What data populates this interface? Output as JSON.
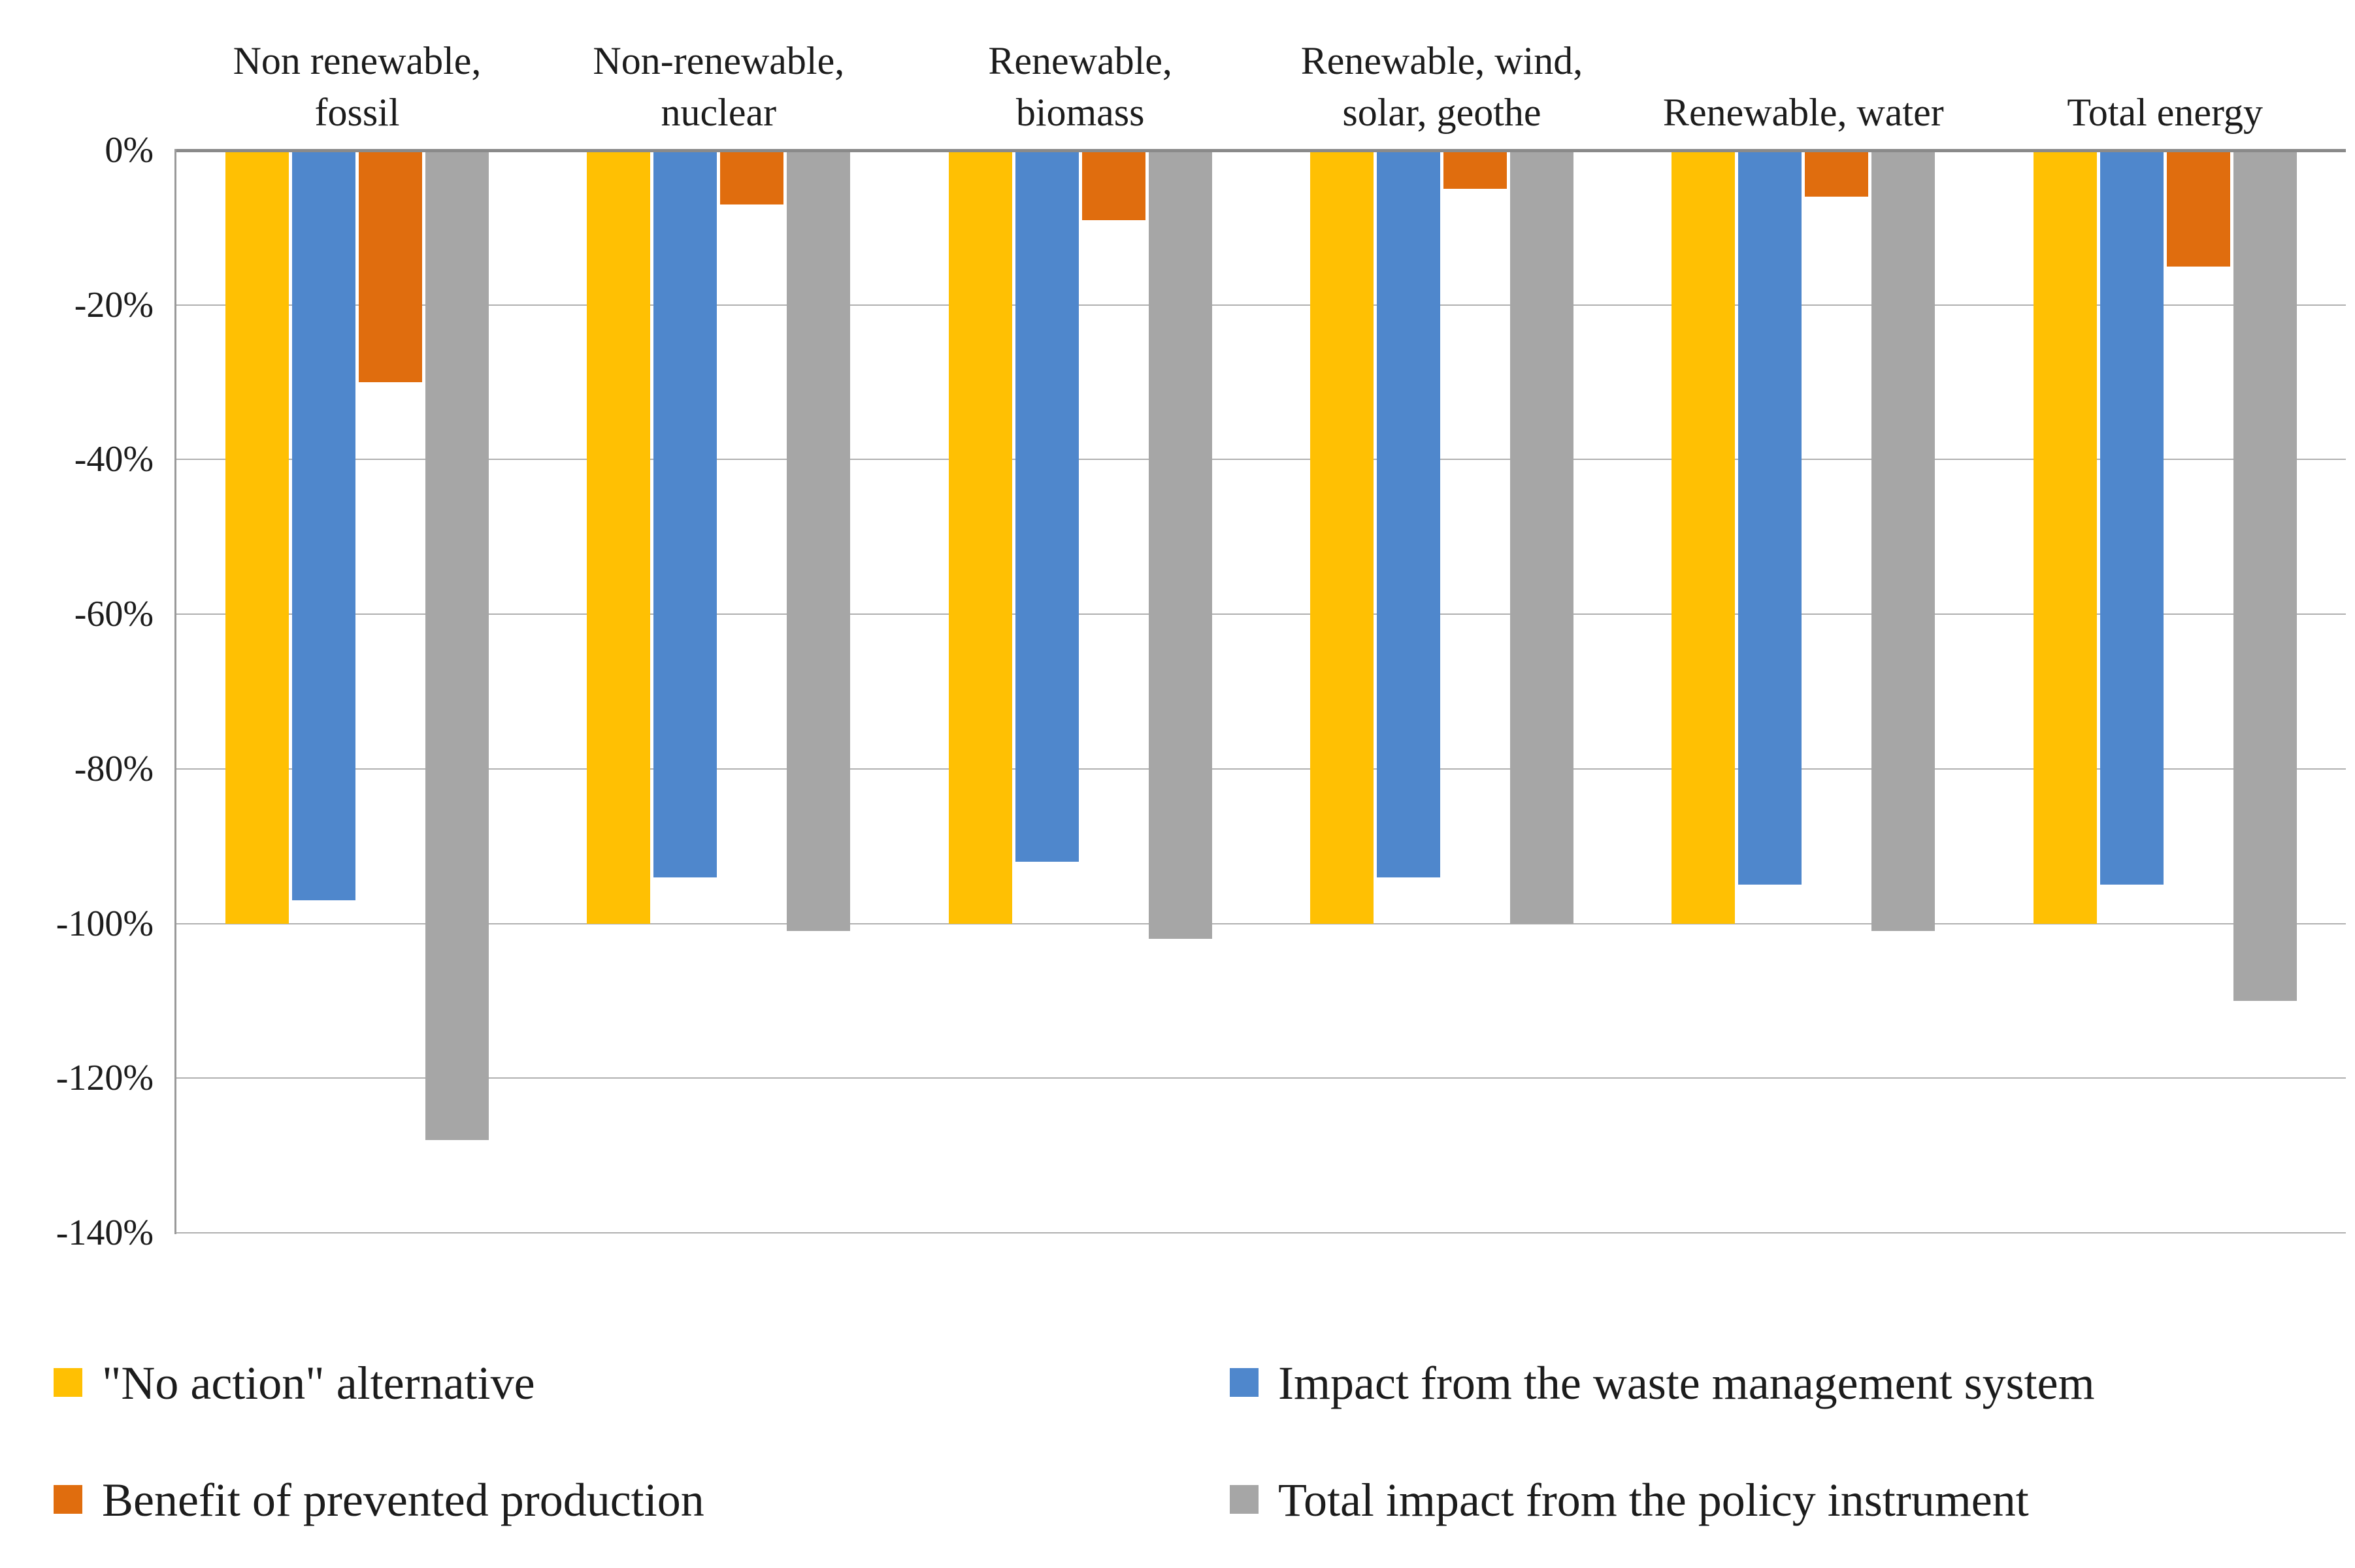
{
  "chart_data": {
    "type": "bar",
    "title": "",
    "xlabel": "",
    "ylabel": "",
    "categories": [
      [
        "Non renewable,",
        "fossil"
      ],
      [
        "Non-renewable,",
        "nuclear"
      ],
      [
        "Renewable,",
        "biomass"
      ],
      [
        "Renewable, wind,",
        "solar, geothe"
      ],
      [
        "Renewable, water"
      ],
      [
        "Total energy"
      ]
    ],
    "series": [
      {
        "name": "\"No action\" alternative",
        "color": "#FFC003",
        "values": [
          -100,
          -100,
          -100,
          -100,
          -100,
          -100
        ]
      },
      {
        "name": "Impact from the waste management system",
        "color": "#4F87CC",
        "values": [
          -97,
          -94,
          -92,
          -94,
          -95,
          -95
        ]
      },
      {
        "name": "Benefit of prevented production",
        "color": "#E06D0E",
        "values": [
          -30,
          -7,
          -9,
          -5,
          -6,
          -15
        ]
      },
      {
        "name": "Total impact from the policy instrument",
        "color": "#A6A6A6",
        "values": [
          -128,
          -101,
          -102,
          -100,
          -101,
          -110
        ]
      }
    ],
    "y_axis": {
      "ticks": [
        "0%",
        "-20%",
        "-40%",
        "-60%",
        "-80%",
        "-100%",
        "-120%",
        "-140%"
      ],
      "min": -140,
      "max": 0,
      "step": -20
    },
    "grid": true,
    "legend_position": "bottom",
    "legend_order": [
      0,
      1,
      2,
      3
    ]
  },
  "legend": {
    "items": [
      {
        "label": "\"No action\" alternative",
        "color": "#FFC003"
      },
      {
        "label": "Impact from the waste management system",
        "color": "#4F87CC"
      },
      {
        "label": "Benefit of prevented production",
        "color": "#E06D0E"
      },
      {
        "label": "Total impact from the policy instrument",
        "color": "#A6A6A6"
      }
    ]
  },
  "colors": {
    "grid": "#b0b0b0",
    "zero_axis": "#8a8a8a",
    "y_axis": "#9a9a9a",
    "text": "#1c1c1c",
    "background": "#ffffff"
  }
}
